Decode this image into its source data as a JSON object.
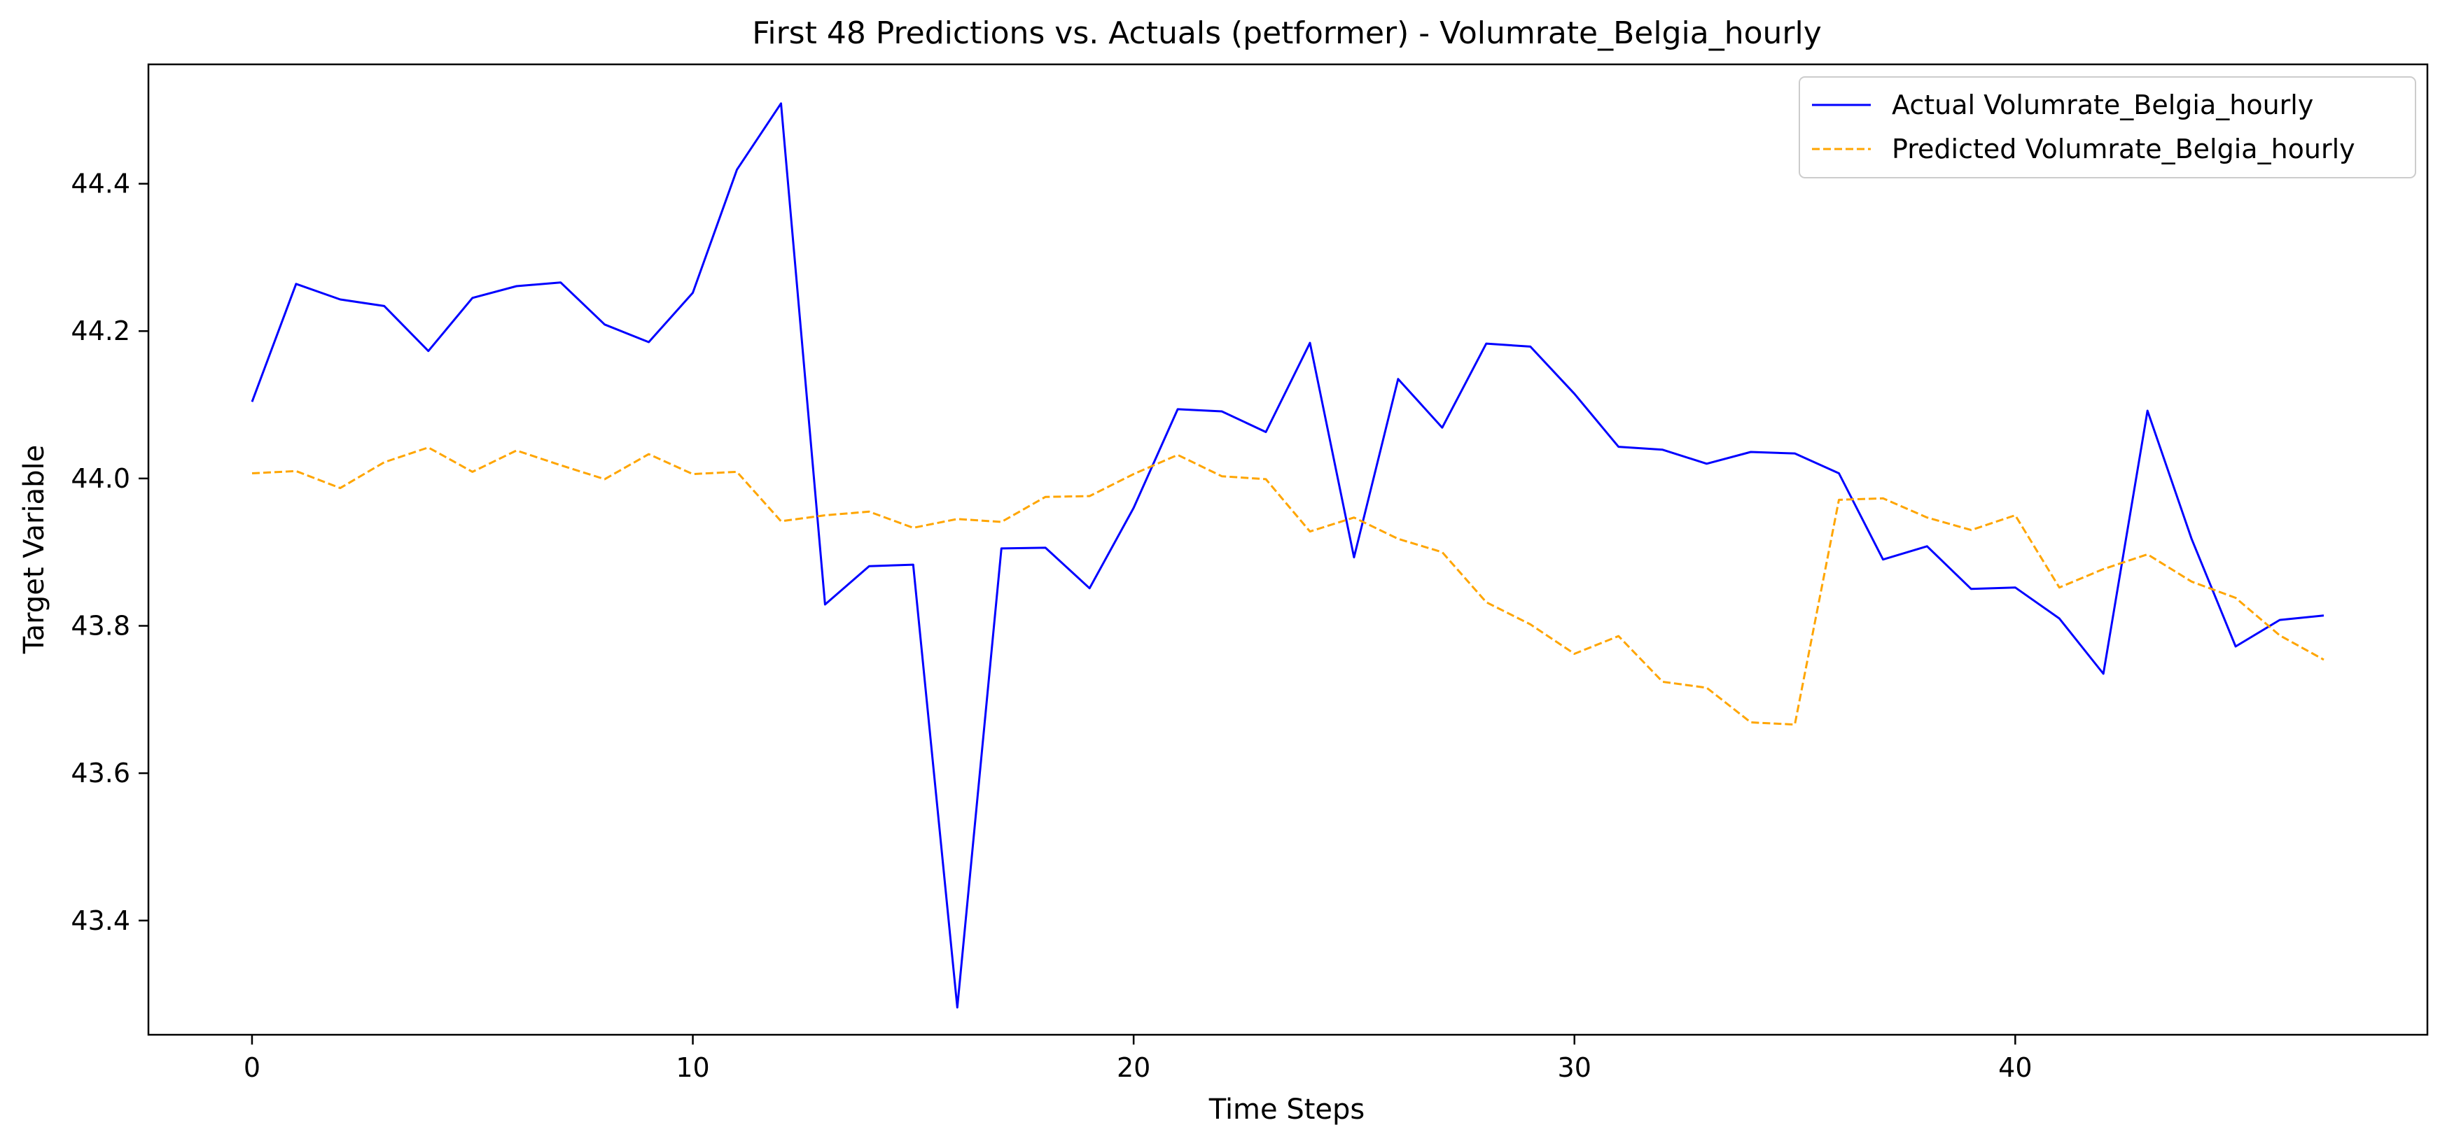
{
  "chart_data": {
    "type": "line",
    "title": "First 48 Predictions vs. Actuals (petformer) - Volumrate_Belgia_hourly",
    "xlabel": "Time Steps",
    "ylabel": "Target Variable",
    "xlim": [
      -2.35,
      49.35
    ],
    "ylim": [
      43.245,
      44.562
    ],
    "xticks": [
      0,
      10,
      20,
      30,
      40
    ],
    "xtick_labels": [
      "0",
      "10",
      "20",
      "30",
      "40"
    ],
    "yticks": [
      43.4,
      43.6,
      43.8,
      44.0,
      44.2,
      44.4
    ],
    "ytick_labels": [
      "43.4",
      "43.6",
      "43.8",
      "44.0",
      "44.2",
      "44.4"
    ],
    "grid": false,
    "legend_position": "top-right",
    "x": [
      0,
      1,
      2,
      3,
      4,
      5,
      6,
      7,
      8,
      9,
      10,
      11,
      12,
      13,
      14,
      15,
      16,
      17,
      18,
      19,
      20,
      21,
      22,
      23,
      24,
      25,
      26,
      27,
      28,
      29,
      30,
      31,
      32,
      33,
      34,
      35,
      36,
      37,
      38,
      39,
      40,
      41,
      42,
      43,
      44,
      45,
      46,
      47
    ],
    "series": [
      {
        "name": "Actual Volumrate_Belgia_hourly",
        "color": "#0000ff",
        "style": "solid",
        "values": [
          44.104,
          44.264,
          44.243,
          44.234,
          44.173,
          44.245,
          44.261,
          44.266,
          44.209,
          44.185,
          44.252,
          44.419,
          44.509,
          43.829,
          43.881,
          43.883,
          43.282,
          43.905,
          43.906,
          43.851,
          43.96,
          44.094,
          44.091,
          44.063,
          44.184,
          43.893,
          44.135,
          44.069,
          44.183,
          44.179,
          44.115,
          44.043,
          44.039,
          44.02,
          44.036,
          44.034,
          44.007,
          43.89,
          43.908,
          43.85,
          43.852,
          43.81,
          43.735,
          44.092,
          43.918,
          43.772,
          43.808,
          43.814
        ]
      },
      {
        "name": "Predicted Volumrate_Belgia_hourly",
        "color": "#ffa500",
        "style": "dashed",
        "values": [
          44.007,
          44.01,
          43.987,
          44.022,
          44.042,
          44.009,
          44.038,
          44.018,
          43.999,
          44.033,
          44.006,
          44.009,
          43.942,
          43.95,
          43.955,
          43.933,
          43.945,
          43.941,
          43.975,
          43.976,
          44.006,
          44.032,
          44.003,
          43.999,
          43.928,
          43.947,
          43.918,
          43.9,
          43.832,
          43.802,
          43.762,
          43.786,
          43.724,
          43.716,
          43.669,
          43.666,
          43.971,
          43.973,
          43.947,
          43.93,
          43.95,
          43.852,
          43.877,
          43.897,
          43.86,
          43.838,
          43.787,
          43.754
        ]
      }
    ]
  }
}
